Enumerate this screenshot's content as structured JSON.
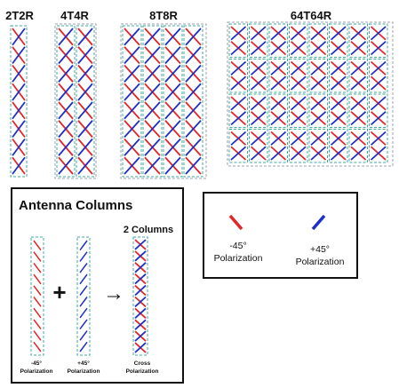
{
  "arrays": [
    {
      "label": "2T2R"
    },
    {
      "label": "4T4R"
    },
    {
      "label": "8T8R"
    },
    {
      "label": "64T64R"
    }
  ],
  "antenna_columns": {
    "title": "Antenna Columns",
    "two_columns_label": "2 Columns",
    "plus_symbol": "+",
    "arrow_symbol": "→",
    "neg_label_1": "-45°",
    "neg_label_2": "Polarization",
    "pos_label_1": "+45°",
    "pos_label_2": "Polarization",
    "cross_label_1": "Cross",
    "cross_label_2": "Polarization"
  },
  "legend": {
    "neg_label_1": "-45°",
    "neg_label_2": "Polarization",
    "pos_label_1": "+45°",
    "pos_label_2": "Polarization",
    "neg_color": "#e0262b",
    "pos_color": "#1f2fc4"
  },
  "colors": {
    "red": "#e0262b",
    "blue": "#1f2fc4",
    "column_border": "#3fa8a0",
    "group_border": "#9aa3ad"
  }
}
